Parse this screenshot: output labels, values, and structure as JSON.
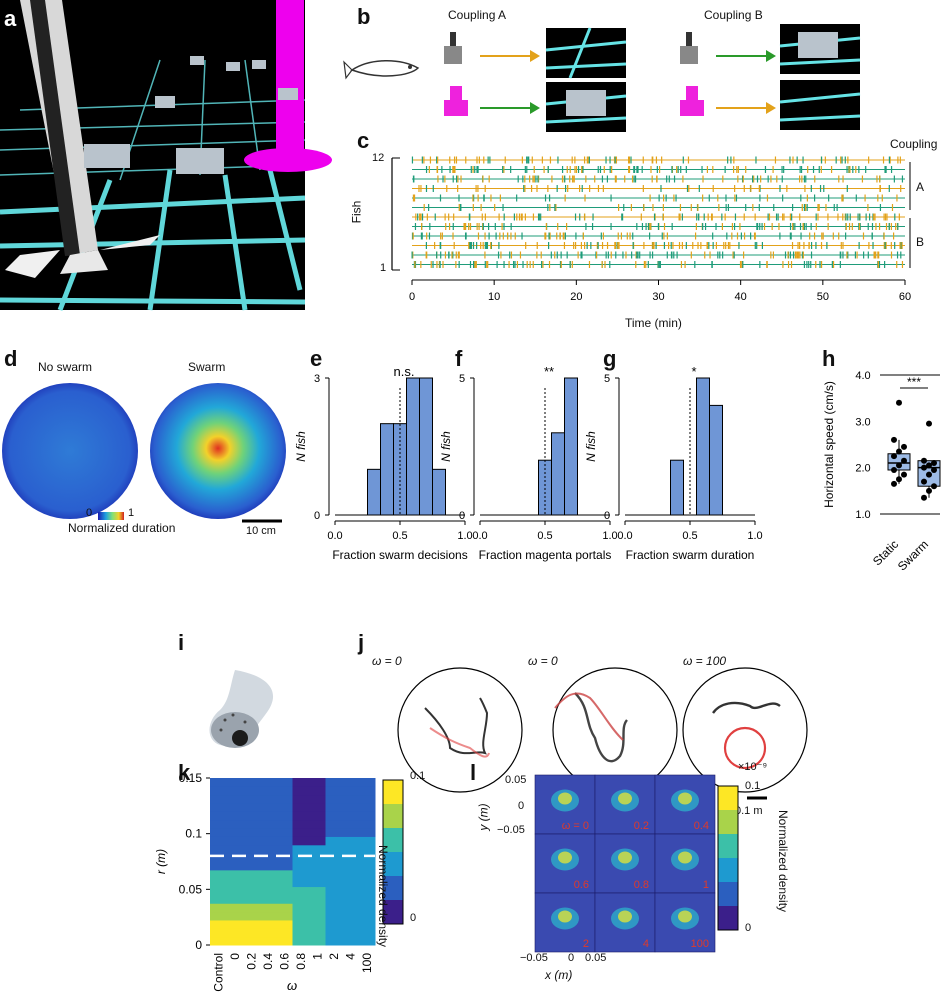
{
  "panels": {
    "a": {
      "letter": "a"
    },
    "b": {
      "letter": "b",
      "coupling_a": "Coupling A",
      "coupling_b": "Coupling B"
    },
    "c": {
      "letter": "c",
      "ylabel": "Fish",
      "xlabel": "Time (min)",
      "y_ticks": [
        "12",
        "1"
      ],
      "x_ticks": [
        "0",
        "10",
        "20",
        "30",
        "40",
        "50",
        "60"
      ],
      "coupling_title": "Coupling",
      "group_a": "A",
      "group_b": "B"
    },
    "d": {
      "letter": "d",
      "no_swarm": "No swarm",
      "swarm": "Swarm",
      "cbar_min": "0",
      "cbar_max": "1",
      "cbar_label": "Normalized duration",
      "scale": "10 cm"
    },
    "e": {
      "letter": "e",
      "sig": "n.s."
    },
    "f": {
      "letter": "f",
      "sig": "**"
    },
    "g": {
      "letter": "g",
      "sig": "*"
    },
    "h": {
      "letter": "h",
      "sig": "***"
    },
    "i": {
      "letter": "i"
    },
    "j": {
      "letter": "j",
      "titles": [
        "ω = 0",
        "ω = 0",
        "ω = 100"
      ],
      "scale": "0.1 m"
    },
    "k": {
      "letter": "k",
      "cbar_label": "Normalized density",
      "cbar_max": "0.1",
      "cbar_min": "0"
    },
    "l": {
      "letter": "l",
      "cbar_label": "Normalized density",
      "cbar_max": "0.1",
      "cbar_min": "0",
      "cbar_exp": "×10⁻⁹",
      "ylabel": "y (m)",
      "xlabel": "x (m)",
      "y_ticks": [
        "0.05",
        "0",
        "−0.05"
      ],
      "x_ticks": [
        "−0.05",
        "0",
        "0.05"
      ],
      "cells": [
        "ω = 0",
        "0.2",
        "0.4",
        "0.6",
        "0.8",
        "1",
        "2",
        "4",
        "100"
      ]
    }
  },
  "chart_data": [
    {
      "type": "bar",
      "panel": "e",
      "xlabel": "Fraction swarm decisions",
      "ylabel": "N fish",
      "x_ticks": [
        "0.0",
        "0.5",
        "1.0"
      ],
      "y_ticks": [
        "0",
        "3"
      ],
      "xlim": [
        0,
        1
      ],
      "ylim": [
        0,
        3
      ],
      "bin_edges": [
        0.25,
        0.35,
        0.45,
        0.55,
        0.65,
        0.75,
        0.85
      ],
      "values": [
        1,
        2,
        2,
        3,
        3,
        1
      ],
      "reference_line": 0.5
    },
    {
      "type": "bar",
      "panel": "f",
      "xlabel": "Fraction magenta portals",
      "ylabel": "N fish",
      "x_ticks": [
        "0.0",
        "0.5",
        "1.0"
      ],
      "y_ticks": [
        "0",
        "5"
      ],
      "xlim": [
        0,
        1
      ],
      "ylim": [
        0,
        5
      ],
      "bin_edges": [
        0.45,
        0.55,
        0.65,
        0.75
      ],
      "values": [
        2,
        3,
        5
      ],
      "reference_line": 0.5
    },
    {
      "type": "bar",
      "panel": "g",
      "xlabel": "Fraction swarm duration",
      "ylabel": "N fish",
      "x_ticks": [
        "0.0",
        "0.5",
        "1.0"
      ],
      "y_ticks": [
        "0",
        "5"
      ],
      "xlim": [
        0,
        1
      ],
      "ylim": [
        0,
        5
      ],
      "bin_edges": [
        0.35,
        0.45,
        0.55,
        0.65,
        0.75
      ],
      "values": [
        2,
        0,
        5,
        4
      ],
      "reference_line": 0.5
    },
    {
      "type": "box",
      "panel": "h",
      "ylabel": "Horizontal speed (cm/s)",
      "categories": [
        "Static",
        "Swarm"
      ],
      "y_ticks": [
        "1.0",
        "2.0",
        "3.0",
        "4.0"
      ],
      "ylim": [
        1,
        4
      ],
      "boxes": [
        {
          "q1": 1.95,
          "median": 2.1,
          "q3": 2.3,
          "whisker_low": 1.65,
          "whisker_high": 2.6,
          "outliers": [
            3.4
          ],
          "points": [
            1.65,
            1.75,
            1.85,
            1.95,
            2.05,
            2.15,
            2.25,
            2.35,
            2.45,
            2.6,
            3.4
          ]
        },
        {
          "q1": 1.6,
          "median": 2.0,
          "q3": 2.15,
          "whisker_low": 1.35,
          "whisker_high": 2.15,
          "outliers": [
            2.95
          ],
          "points": [
            1.35,
            1.5,
            1.6,
            1.7,
            1.85,
            1.95,
            2.0,
            2.05,
            2.1,
            2.15,
            2.95
          ]
        }
      ]
    },
    {
      "type": "heatmap",
      "panel": "k",
      "xlabel": "ω",
      "ylabel": "r (m)",
      "x_ticks": [
        "Control",
        "0",
        "0.2",
        "0.4",
        "0.6",
        "0.8",
        "1",
        "2",
        "4",
        "100"
      ],
      "y_ticks": [
        "0",
        "0.05",
        "0.1",
        "0.15"
      ],
      "ylim": [
        0,
        0.15
      ],
      "dashed_line": 0.08,
      "colormap": [
        "#3b1f8a",
        "#2b5fbf",
        "#1e9ad0",
        "#3cc0a8",
        "#a9d34a",
        "#fde725"
      ]
    }
  ]
}
